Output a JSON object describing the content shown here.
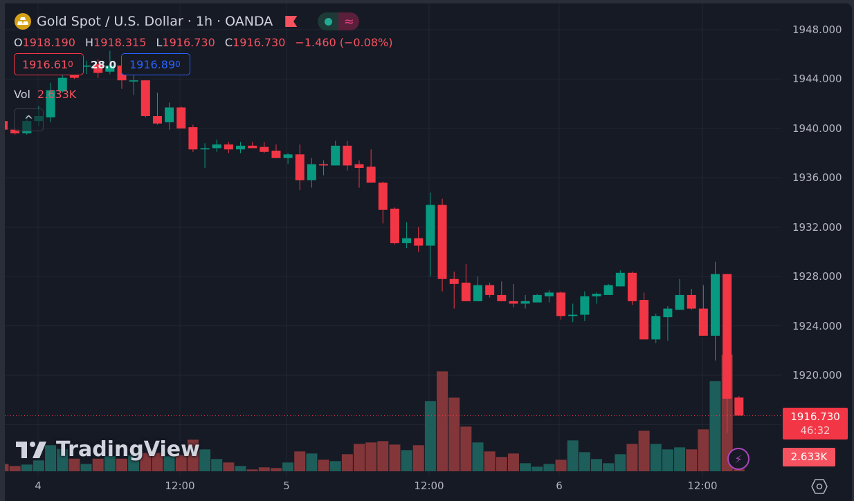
{
  "header": {
    "symbol_icon": "gold-bars-icon",
    "title": "Gold Spot / U.S. Dollar · 1h · OANDA",
    "flag_icon": "flag-icon",
    "status_dot_icon": "market-open-dot-icon",
    "wave_icon": "≈"
  },
  "ohlc": {
    "o_label": "O",
    "o": "1918.190",
    "h_label": "H",
    "h": "1918.315",
    "l_label": "L",
    "l": "1916.730",
    "c_label": "C",
    "c": "1916.730",
    "change": "−1.460 (−0.08%)"
  },
  "trade": {
    "sell_price": "1916.61",
    "sell_sup": "0",
    "spread": "28.0",
    "buy_price": "1916.89",
    "buy_sup": "0"
  },
  "volume_legend": {
    "label": "Vol",
    "value": "2.633K"
  },
  "collapse_icon": "^",
  "price_axis": {
    "labels": [
      "1948.000",
      "1944.000",
      "1940.000",
      "1936.000",
      "1932.000",
      "1928.000",
      "1924.000",
      "1920.000"
    ],
    "current_price": "1916.730",
    "countdown": "46:32",
    "current_volume": "2.633K"
  },
  "time_axis": {
    "labels": [
      "4",
      "12:00",
      "5",
      "12:00",
      "6",
      "12:00"
    ]
  },
  "watermark": {
    "brand": "TradingView"
  },
  "colors": {
    "up": "#089981",
    "down": "#f23645",
    "vol_up": "#1d5e5a",
    "vol_down": "#833639",
    "background": "#161a25",
    "grid": "#232734"
  },
  "chart_data": {
    "type": "candlestick",
    "title": "Gold Spot / U.S. Dollar · 1h · OANDA",
    "ylim": [
      1914,
      1950
    ],
    "yticks": [
      1948,
      1944,
      1940,
      1936,
      1932,
      1928,
      1924,
      1920,
      1916
    ],
    "last_price": 1916.73,
    "candles_ohlc": [
      [
        1940.6,
        1940.9,
        1939.8,
        1939.9
      ],
      [
        1939.9,
        1940.0,
        1939.5,
        1939.6
      ],
      [
        1939.6,
        1941.1,
        1939.5,
        1940.6
      ],
      [
        1940.6,
        1941.8,
        1940.2,
        1941.0
      ],
      [
        1940.9,
        1943.7,
        1940.5,
        1943.1
      ],
      [
        1943.0,
        1945.4,
        1942.9,
        1944.1
      ],
      [
        1945.0,
        1945.6,
        1944.0,
        1944.1
      ],
      [
        1945.0,
        1945.5,
        1944.4,
        1945.1
      ],
      [
        1945.2,
        1945.6,
        1944.1,
        1944.5
      ],
      [
        1944.6,
        1946.3,
        1944.4,
        1945.1
      ],
      [
        1945.1,
        1945.4,
        1943.2,
        1943.9
      ],
      [
        1943.8,
        1944.5,
        1942.7,
        1943.9
      ],
      [
        1943.9,
        1943.9,
        1940.9,
        1941.0
      ],
      [
        1941.0,
        1942.9,
        1940.3,
        1940.4
      ],
      [
        1940.5,
        1942.1,
        1939.9,
        1941.7
      ],
      [
        1941.7,
        1941.8,
        1940.0,
        1940.0
      ],
      [
        1940.1,
        1940.3,
        1938.1,
        1938.3
      ],
      [
        1938.3,
        1938.8,
        1936.8,
        1938.4
      ],
      [
        1938.4,
        1939.1,
        1938.1,
        1938.7
      ],
      [
        1938.7,
        1938.9,
        1938.0,
        1938.3
      ],
      [
        1938.3,
        1938.9,
        1938.0,
        1938.6
      ],
      [
        1938.6,
        1938.9,
        1938.4,
        1938.4
      ],
      [
        1938.5,
        1938.9,
        1938.0,
        1938.1
      ],
      [
        1938.2,
        1938.7,
        1937.6,
        1937.6
      ],
      [
        1937.6,
        1938.0,
        1937.1,
        1937.9
      ],
      [
        1937.9,
        1938.7,
        1935.0,
        1935.8
      ],
      [
        1935.8,
        1937.6,
        1935.2,
        1937.1
      ],
      [
        1937.1,
        1937.4,
        1936.2,
        1937.0
      ],
      [
        1937.0,
        1939.0,
        1937.0,
        1938.6
      ],
      [
        1938.6,
        1939.0,
        1936.6,
        1937.0
      ],
      [
        1937.1,
        1937.4,
        1935.2,
        1936.8
      ],
      [
        1936.9,
        1938.3,
        1935.6,
        1935.6
      ],
      [
        1935.6,
        1935.7,
        1932.3,
        1933.4
      ],
      [
        1933.5,
        1933.6,
        1930.6,
        1930.7
      ],
      [
        1930.7,
        1932.4,
        1930.3,
        1931.1
      ],
      [
        1931.1,
        1932.0,
        1930.0,
        1930.5
      ],
      [
        1930.5,
        1934.8,
        1928.0,
        1933.8
      ],
      [
        1933.8,
        1934.3,
        1926.8,
        1927.8
      ],
      [
        1927.8,
        1928.4,
        1925.4,
        1927.4
      ],
      [
        1927.5,
        1929.0,
        1926.0,
        1926.0
      ],
      [
        1926.0,
        1928.0,
        1926.0,
        1927.3
      ],
      [
        1927.3,
        1927.5,
        1926.3,
        1926.5
      ],
      [
        1926.5,
        1927.6,
        1926.0,
        1926.0
      ],
      [
        1926.0,
        1927.4,
        1925.5,
        1925.8
      ],
      [
        1925.8,
        1926.5,
        1925.4,
        1926.0
      ],
      [
        1925.9,
        1926.6,
        1925.9,
        1926.5
      ],
      [
        1926.4,
        1926.9,
        1925.9,
        1926.7
      ],
      [
        1926.7,
        1926.8,
        1924.5,
        1924.8
      ],
      [
        1924.8,
        1925.8,
        1924.3,
        1924.9
      ],
      [
        1924.9,
        1926.8,
        1924.4,
        1926.4
      ],
      [
        1926.4,
        1926.7,
        1925.8,
        1926.6
      ],
      [
        1926.5,
        1927.4,
        1926.5,
        1927.3
      ],
      [
        1927.2,
        1928.5,
        1927.2,
        1928.3
      ],
      [
        1928.3,
        1928.4,
        1925.7,
        1926.0
      ],
      [
        1926.1,
        1926.7,
        1922.9,
        1922.9
      ],
      [
        1922.9,
        1925.0,
        1922.6,
        1924.8
      ],
      [
        1924.7,
        1925.6,
        1922.8,
        1925.4
      ],
      [
        1925.3,
        1927.8,
        1925.3,
        1926.5
      ],
      [
        1926.5,
        1927.0,
        1925.3,
        1925.4
      ],
      [
        1925.4,
        1927.3,
        1923.2,
        1923.2
      ],
      [
        1923.2,
        1929.2,
        1921.2,
        1928.2
      ],
      [
        1928.2,
        1928.2,
        1915.3,
        1918.1
      ],
      [
        1918.19,
        1918.315,
        1916.73,
        1916.73
      ]
    ],
    "volume_k": [
      10.4,
      7.5,
      9.5,
      15.3,
      36.8,
      31.5,
      17.8,
      10.4,
      17.8,
      21.2,
      17.8,
      22.4,
      26.0,
      26.0,
      21.2,
      23.1,
      44.6,
      30.9,
      17.3,
      12.4,
      7.5,
      2.6,
      5.6,
      4.6,
      12.4,
      28.0,
      25.1,
      16.3,
      14.3,
      24.1,
      38.7,
      40.7,
      42.6,
      37.7,
      29.9,
      36.8,
      99.2,
      141.1,
      104.0,
      63.1,
      40.7,
      28.0,
      20.2,
      25.1,
      11.4,
      6.5,
      10.4,
      16.3,
      43.6,
      27.0,
      17.3,
      11.4,
      24.1,
      38.7,
      57.2,
      38.7,
      30.9,
      33.8,
      30.9,
      59.2,
      127.4,
      164.5,
      2.633
    ]
  }
}
